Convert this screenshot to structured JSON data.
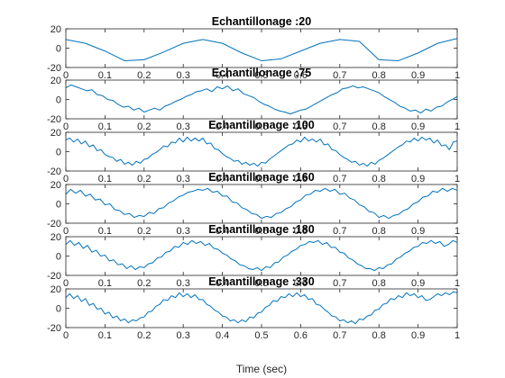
{
  "chart_data": {
    "type": "line",
    "xlabel": "Time (sec)",
    "line_color": "#0072bd",
    "axis_color": "#262626",
    "grid": false,
    "legend": "none",
    "x_ticks": [
      "0",
      "0.1",
      "0.2",
      "0.3",
      "0.4",
      "0.5",
      "0.6",
      "0.7",
      "0.8",
      "0.9",
      "1"
    ],
    "y_ticks": [
      "20",
      "0",
      "-20"
    ],
    "xlim": [
      0,
      1
    ],
    "ylim": [
      -20,
      20
    ],
    "subplots": [
      {
        "title": "Echantillonage :20",
        "x": [
          0,
          0.05,
          0.1,
          0.15,
          0.2,
          0.25,
          0.3,
          0.35,
          0.4,
          0.45,
          0.5,
          0.55,
          0.6,
          0.65,
          0.7,
          0.75,
          0.8,
          0.85,
          0.9,
          0.95,
          1
        ],
        "y": [
          9,
          5,
          -3,
          -13,
          -12,
          -4,
          5,
          9,
          5,
          -5,
          -13,
          -11,
          -3,
          5,
          9,
          7,
          -12,
          -13,
          -5,
          5,
          10
        ]
      },
      {
        "title": "Echantillonage :75",
        "x": [
          0,
          0.0133,
          0.0267,
          0.04,
          0.0533,
          0.0667,
          0.08,
          0.0933,
          0.1067,
          0.12,
          0.1333,
          0.1467,
          0.16,
          0.1733,
          0.1867,
          0.2,
          0.2133,
          0.2267,
          0.24,
          0.2533,
          0.2667,
          0.28,
          0.2933,
          0.3067,
          0.32,
          0.3333,
          0.3467,
          0.36,
          0.3733,
          0.3867,
          0.4,
          0.4133,
          0.4267,
          0.44,
          0.4533,
          0.4667,
          0.48,
          0.4933,
          0.5067,
          0.52,
          0.5333,
          0.5467,
          0.56,
          0.5733,
          0.5867,
          0.6,
          0.6133,
          0.6267,
          0.64,
          0.6533,
          0.6667,
          0.68,
          0.6933,
          0.7067,
          0.72,
          0.7333,
          0.7467,
          0.76,
          0.7733,
          0.7867,
          0.8,
          0.8133,
          0.8267,
          0.84,
          0.8533,
          0.8667,
          0.88,
          0.8933,
          0.9067,
          0.92,
          0.9333,
          0.9467,
          0.96,
          0.9733,
          0.9867,
          1
        ],
        "y": [
          12,
          15,
          13,
          11,
          9,
          10,
          5,
          4,
          0,
          -1,
          -5,
          -8,
          -7,
          -11,
          -9,
          -13,
          -11,
          -9,
          -11,
          -7,
          -5,
          -2,
          0,
          3,
          5,
          8,
          9,
          11,
          8,
          13,
          11,
          14,
          9,
          11,
          6,
          4,
          2,
          -2,
          -5,
          -7,
          -10,
          -12,
          -13,
          -15,
          -13,
          -11,
          -10,
          -7,
          -4,
          -1,
          2,
          5,
          7,
          11,
          12,
          14,
          12,
          13,
          11,
          9,
          7,
          3,
          0,
          -3,
          -7,
          -9,
          -12,
          -11,
          -14,
          -10,
          -12,
          -8,
          -7,
          -3,
          0,
          3
        ]
      },
      {
        "title": "Echantillonage :100",
        "x": [
          0,
          0.01,
          0.02,
          0.03,
          0.04,
          0.05,
          0.06,
          0.07,
          0.08,
          0.09,
          0.1,
          0.11,
          0.12,
          0.13,
          0.14,
          0.15,
          0.16,
          0.17,
          0.18,
          0.19,
          0.2,
          0.21,
          0.22,
          0.23,
          0.24,
          0.25,
          0.26,
          0.27,
          0.28,
          0.29,
          0.3,
          0.31,
          0.32,
          0.33,
          0.34,
          0.35,
          0.36,
          0.37,
          0.38,
          0.39,
          0.4,
          0.41,
          0.42,
          0.43,
          0.44,
          0.45,
          0.46,
          0.47,
          0.48,
          0.49,
          0.5,
          0.51,
          0.52,
          0.53,
          0.54,
          0.55,
          0.56,
          0.57,
          0.58,
          0.59,
          0.6,
          0.61,
          0.62,
          0.63,
          0.64,
          0.65,
          0.66,
          0.67,
          0.68,
          0.69,
          0.7,
          0.71,
          0.72,
          0.73,
          0.74,
          0.75,
          0.76,
          0.77,
          0.78,
          0.79,
          0.8,
          0.81,
          0.82,
          0.83,
          0.84,
          0.85,
          0.86,
          0.87,
          0.88,
          0.89,
          0.9,
          0.91,
          0.92,
          0.93,
          0.94,
          0.95,
          0.96,
          0.97,
          0.98,
          0.99,
          1
        ],
        "y": [
          12,
          14,
          10,
          13,
          8,
          11,
          5,
          7,
          1,
          2,
          -3,
          -5,
          -6,
          -10,
          -8,
          -13,
          -11,
          -14,
          -10,
          -12,
          -8,
          -7,
          -3,
          -1,
          2,
          6,
          5,
          10,
          9,
          14,
          10,
          15,
          11,
          14,
          11,
          14,
          8,
          9,
          3,
          2,
          -2,
          -5,
          -7,
          -10,
          -9,
          -13,
          -11,
          -14,
          -12,
          -15,
          -11,
          -12,
          -8,
          -5,
          -2,
          1,
          4,
          7,
          8,
          12,
          10,
          15,
          11,
          13,
          10,
          13,
          7,
          8,
          2,
          1,
          -3,
          -6,
          -8,
          -11,
          -10,
          -14,
          -12,
          -15,
          -11,
          -13,
          -9,
          -7,
          -4,
          -1,
          2,
          5,
          7,
          11,
          10,
          14,
          11,
          15,
          12,
          14,
          9,
          12,
          6,
          7,
          2,
          10,
          11
        ]
      },
      {
        "title": "Echantillonage :160",
        "x": [
          0,
          0.0125,
          0.025,
          0.0375,
          0.05,
          0.0625,
          0.075,
          0.0875,
          0.1,
          0.1125,
          0.125,
          0.1375,
          0.15,
          0.1625,
          0.175,
          0.1875,
          0.2,
          0.2125,
          0.225,
          0.2375,
          0.25,
          0.2625,
          0.275,
          0.2875,
          0.3,
          0.3125,
          0.325,
          0.3375,
          0.35,
          0.3625,
          0.375,
          0.3875,
          0.4,
          0.4125,
          0.425,
          0.4375,
          0.45,
          0.4625,
          0.475,
          0.4875,
          0.5,
          0.5125,
          0.525,
          0.5375,
          0.55,
          0.5625,
          0.575,
          0.5875,
          0.6,
          0.6125,
          0.625,
          0.6375,
          0.65,
          0.6625,
          0.675,
          0.6875,
          0.7,
          0.7125,
          0.725,
          0.7375,
          0.75,
          0.7625,
          0.775,
          0.7875,
          0.8,
          0.8125,
          0.825,
          0.8375,
          0.85,
          0.8625,
          0.875,
          0.8875,
          0.9,
          0.9125,
          0.925,
          0.9375,
          0.95,
          0.9625,
          0.975,
          0.9875,
          1
        ],
        "y": [
          10,
          15,
          11,
          14,
          8,
          10,
          4,
          5,
          -1,
          0,
          -6,
          -7,
          -11,
          -10,
          -14,
          -12,
          -13,
          -9,
          -10,
          -5,
          -4,
          1,
          3,
          7,
          9,
          12,
          13,
          15,
          14,
          16,
          12,
          13,
          8,
          8,
          2,
          1,
          -4,
          -6,
          -10,
          -11,
          -15,
          -13,
          -14,
          -10,
          -9,
          -5,
          -3,
          2,
          4,
          9,
          10,
          14,
          13,
          16,
          13,
          15,
          10,
          11,
          6,
          4,
          -1,
          -3,
          -8,
          -9,
          -14,
          -12,
          -15,
          -12,
          -11,
          -7,
          -5,
          0,
          2,
          7,
          8,
          13,
          12,
          16,
          13,
          16,
          14
        ]
      },
      {
        "title": "Echantillonage :180",
        "x": [
          0,
          0.0111,
          0.0222,
          0.0333,
          0.0444,
          0.0556,
          0.0667,
          0.0778,
          0.0889,
          0.1,
          0.1111,
          0.1222,
          0.1333,
          0.1444,
          0.1556,
          0.1667,
          0.1778,
          0.1889,
          0.2,
          0.2111,
          0.2222,
          0.2333,
          0.2444,
          0.2556,
          0.2667,
          0.2778,
          0.2889,
          0.3,
          0.3111,
          0.3222,
          0.3333,
          0.3444,
          0.3556,
          0.3667,
          0.3778,
          0.3889,
          0.4,
          0.4111,
          0.4222,
          0.4333,
          0.4444,
          0.4556,
          0.4667,
          0.4778,
          0.4889,
          0.5,
          0.5111,
          0.5222,
          0.5333,
          0.5444,
          0.5556,
          0.5667,
          0.5778,
          0.5889,
          0.6,
          0.6111,
          0.6222,
          0.6333,
          0.6444,
          0.6556,
          0.6667,
          0.6778,
          0.6889,
          0.7,
          0.7111,
          0.7222,
          0.7333,
          0.7444,
          0.7556,
          0.7667,
          0.7778,
          0.7889,
          0.8,
          0.8111,
          0.8222,
          0.8333,
          0.8444,
          0.8556,
          0.8667,
          0.8778,
          0.8889,
          0.9,
          0.9111,
          0.9222,
          0.9333,
          0.9444,
          0.9556,
          0.9667,
          0.9778,
          0.9889,
          1
        ],
        "y": [
          12,
          16,
          11,
          14,
          8,
          11,
          4,
          6,
          0,
          1,
          -5,
          -4,
          -9,
          -8,
          -13,
          -10,
          -14,
          -11,
          -12,
          -8,
          -7,
          -2,
          -1,
          4,
          5,
          10,
          9,
          14,
          12,
          16,
          13,
          15,
          11,
          13,
          8,
          7,
          3,
          1,
          -3,
          -5,
          -9,
          -10,
          -13,
          -14,
          -12,
          -15,
          -11,
          -12,
          -7,
          -6,
          -1,
          1,
          5,
          7,
          11,
          12,
          15,
          14,
          16,
          12,
          14,
          9,
          9,
          4,
          3,
          -2,
          -4,
          -8,
          -10,
          -13,
          -13,
          -15,
          -12,
          -13,
          -9,
          -8,
          -3,
          -1,
          3,
          5,
          9,
          10,
          14,
          13,
          16,
          13,
          15,
          10,
          12,
          16,
          14
        ]
      },
      {
        "title": "Echantillonage :330",
        "x": [
          0,
          0.01,
          0.02,
          0.03,
          0.04,
          0.05,
          0.06,
          0.07,
          0.08,
          0.09,
          0.1,
          0.11,
          0.12,
          0.13,
          0.14,
          0.15,
          0.16,
          0.17,
          0.18,
          0.19,
          0.2,
          0.21,
          0.22,
          0.23,
          0.24,
          0.25,
          0.26,
          0.27,
          0.28,
          0.29,
          0.3,
          0.31,
          0.32,
          0.33,
          0.34,
          0.35,
          0.36,
          0.37,
          0.38,
          0.39,
          0.4,
          0.41,
          0.42,
          0.43,
          0.44,
          0.45,
          0.46,
          0.47,
          0.48,
          0.49,
          0.5,
          0.51,
          0.52,
          0.53,
          0.54,
          0.55,
          0.56,
          0.57,
          0.58,
          0.59,
          0.6,
          0.61,
          0.62,
          0.63,
          0.64,
          0.65,
          0.66,
          0.67,
          0.68,
          0.69,
          0.7,
          0.71,
          0.72,
          0.73,
          0.74,
          0.75,
          0.76,
          0.77,
          0.78,
          0.79,
          0.8,
          0.81,
          0.82,
          0.83,
          0.84,
          0.85,
          0.86,
          0.87,
          0.88,
          0.89,
          0.9,
          0.91,
          0.92,
          0.93,
          0.94,
          0.95,
          0.96,
          0.97,
          0.98,
          0.99,
          1
        ],
        "y": [
          11,
          15,
          10,
          13,
          7,
          10,
          3,
          5,
          -1,
          0,
          -6,
          -4,
          -10,
          -8,
          -13,
          -11,
          -15,
          -12,
          -13,
          -10,
          -9,
          -4,
          -3,
          2,
          4,
          9,
          8,
          13,
          11,
          16,
          12,
          15,
          11,
          14,
          9,
          9,
          4,
          2,
          -2,
          -4,
          -8,
          -9,
          -13,
          -12,
          -15,
          -12,
          -14,
          -9,
          -10,
          -5,
          -4,
          1,
          3,
          8,
          7,
          12,
          11,
          15,
          12,
          16,
          12,
          14,
          9,
          10,
          4,
          3,
          -1,
          -4,
          -8,
          -9,
          -13,
          -12,
          -15,
          -13,
          -16,
          -11,
          -12,
          -8,
          -7,
          -2,
          -1,
          4,
          5,
          10,
          9,
          13,
          11,
          16,
          13,
          15,
          11,
          13,
          8,
          9,
          12,
          15,
          13,
          16,
          14,
          17,
          16
        ]
      }
    ]
  }
}
